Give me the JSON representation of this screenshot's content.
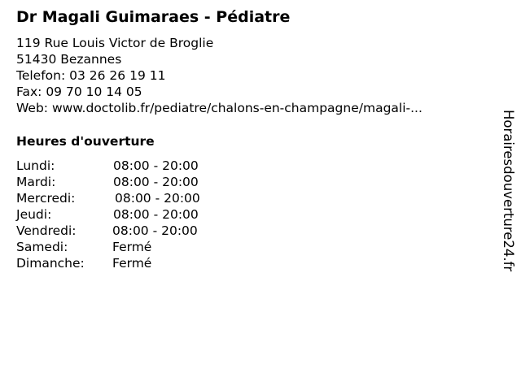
{
  "title": "Dr Magali Guimaraes - Pédiatre",
  "address_line1": "119 Rue Louis Victor de Broglie",
  "address_line2": "51430 Bezannes",
  "phone": "Telefon: 03 26 26 19 11",
  "fax": "Fax: 09 70 10 14 05",
  "web": "Web: www.doctolib.fr/pediatre/chalons-en-champagne/magali-...",
  "hours_title": "Heures d'ouverture",
  "hours": [
    {
      "day": "Lundi:",
      "time": "08:00 - 20:00"
    },
    {
      "day": "Mardi:",
      "time": "08:00 - 20:00"
    },
    {
      "day": "Mercredi:",
      "time": "08:00 - 20:00"
    },
    {
      "day": "Jeudi:",
      "time": "08:00 - 20:00"
    },
    {
      "day": "Vendredi:",
      "time": "08:00 - 20:00"
    },
    {
      "day": "Samedi:",
      "time": "Fermé"
    },
    {
      "day": "Dimanche:",
      "time": "Fermé"
    }
  ],
  "brand": "Horairesdouverture24.fr"
}
